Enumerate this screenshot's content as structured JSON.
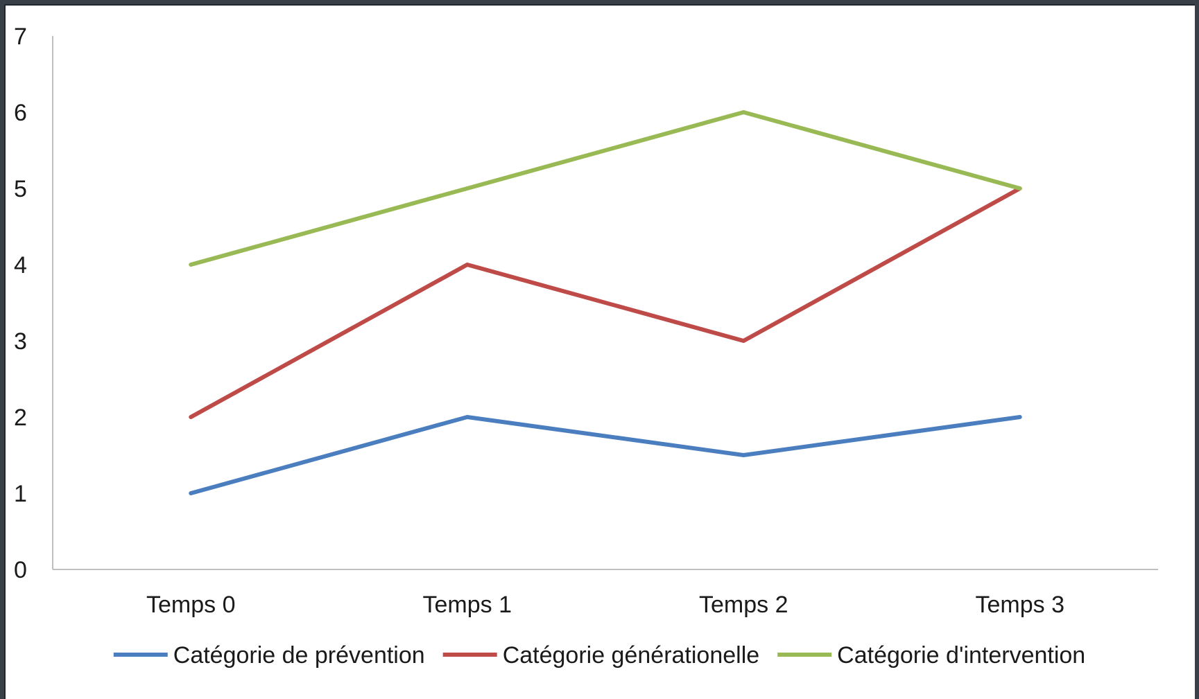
{
  "chart_data": {
    "type": "line",
    "title": "",
    "xlabel": "",
    "ylabel": "",
    "categories": [
      "Temps 0",
      "Temps 1",
      "Temps 2",
      "Temps 3"
    ],
    "ylim": [
      0,
      7
    ],
    "yticks": [
      0,
      1,
      2,
      3,
      4,
      5,
      6,
      7
    ],
    "grid": false,
    "legend_position": "bottom",
    "series": [
      {
        "name": "Catégorie de prévention",
        "values": [
          1,
          2,
          1.5,
          2
        ],
        "color": "#4a7ebf"
      },
      {
        "name": "Catégorie générationelle",
        "values": [
          2,
          4,
          3,
          5
        ],
        "color": "#be4b48"
      },
      {
        "name": "Catégorie d'intervention",
        "values": [
          4,
          5,
          6,
          5
        ],
        "color": "#98b954"
      }
    ]
  }
}
